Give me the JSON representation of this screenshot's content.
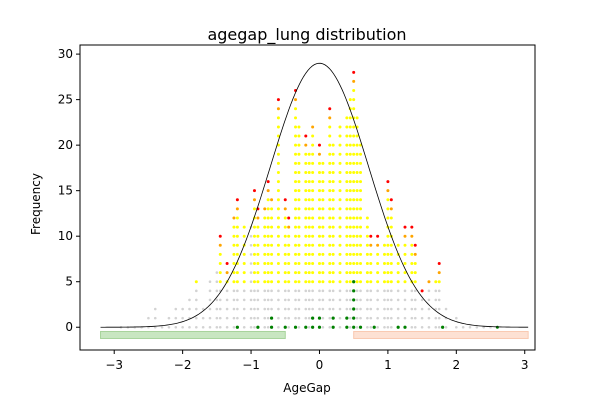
{
  "chart_data": {
    "type": "scatter",
    "title": "agegap_lung distribution",
    "xlabel": "AgeGap",
    "ylabel": "Frequency",
    "xlim": [
      -3.5,
      3.15
    ],
    "ylim": [
      -2.5,
      31
    ],
    "x_ticks": [
      -3,
      -2,
      -1,
      0,
      1,
      2,
      3
    ],
    "x_tick_labels": [
      "−3",
      "−2",
      "−1",
      "0",
      "1",
      "2",
      "3"
    ],
    "y_ticks": [
      0,
      5,
      10,
      15,
      20,
      25,
      30
    ],
    "y_tick_labels": [
      "0",
      "5",
      "10",
      "15",
      "20",
      "25",
      "30"
    ],
    "grid": false,
    "legend": "none",
    "colors": {
      "gray": "#d3d3d3",
      "yellow": "#ffff00",
      "orange": "#ffa500",
      "red": "#ff0000",
      "green": "#008000",
      "curve": "#000000",
      "band_left": "#c8e6c1",
      "band_left_edge": "#a7d39b",
      "band_right": "#fde1d3",
      "band_right_edge": "#f9c9b1"
    },
    "bands": [
      {
        "x0": -3.2,
        "x1": -0.5,
        "y": -0.85,
        "color": "band_left"
      },
      {
        "x0": 0.5,
        "x1": 3.05,
        "y": -0.85,
        "color": "band_right"
      }
    ],
    "curve": {
      "type": "gaussian",
      "peak": 29,
      "center": 0.0,
      "sigma": 0.72,
      "x_from": -3.2,
      "x_to": 3.05
    },
    "columns": [
      {
        "x": -2.9,
        "top": 0,
        "pattern": "gray"
      },
      {
        "x": -2.8,
        "top": 0,
        "pattern": "gray"
      },
      {
        "x": -2.7,
        "top": 0,
        "pattern": "gray"
      },
      {
        "x": -2.6,
        "top": 0,
        "pattern": "gray"
      },
      {
        "x": -2.5,
        "top": 1,
        "pattern": "gray"
      },
      {
        "x": -2.4,
        "top": 2,
        "pattern": "gray"
      },
      {
        "x": -2.3,
        "top": 0,
        "pattern": "gray"
      },
      {
        "x": -2.2,
        "top": 1,
        "pattern": "gray"
      },
      {
        "x": -2.1,
        "top": 2,
        "pattern": "gray"
      },
      {
        "x": -2.0,
        "top": 2,
        "pattern": "gray"
      },
      {
        "x": -1.9,
        "top": 3,
        "pattern": "gray"
      },
      {
        "x": -1.8,
        "top": 5,
        "pattern": "yellow"
      },
      {
        "x": -1.7,
        "top": 2,
        "pattern": "yellow"
      },
      {
        "x": -1.6,
        "top": 5,
        "pattern": "gray"
      },
      {
        "x": -1.5,
        "top": 6,
        "pattern": "gray"
      },
      {
        "x": -1.45,
        "top": 10,
        "pattern": "red"
      },
      {
        "x": -1.35,
        "top": 7,
        "pattern": "red"
      },
      {
        "x": -1.25,
        "top": 12,
        "pattern": "orange"
      },
      {
        "x": -1.2,
        "top": 14,
        "pattern": "red"
      },
      {
        "x": -1.1,
        "top": 11,
        "pattern": "yellow"
      },
      {
        "x": -1.0,
        "top": 11,
        "pattern": "gray"
      },
      {
        "x": -0.95,
        "top": 15,
        "pattern": "red"
      },
      {
        "x": -0.9,
        "top": 13,
        "pattern": "red"
      },
      {
        "x": -0.8,
        "top": 13,
        "pattern": "orange"
      },
      {
        "x": -0.75,
        "top": 16,
        "pattern": "red"
      },
      {
        "x": -0.7,
        "top": 14,
        "pattern": "orange"
      },
      {
        "x": -0.6,
        "top": 25,
        "pattern": "red"
      },
      {
        "x": -0.5,
        "top": 14,
        "pattern": "red"
      },
      {
        "x": -0.45,
        "top": 12,
        "pattern": "red"
      },
      {
        "x": -0.35,
        "top": 26,
        "pattern": "red"
      },
      {
        "x": -0.3,
        "top": 22,
        "pattern": "yellow"
      },
      {
        "x": -0.2,
        "top": 21,
        "pattern": "red"
      },
      {
        "x": -0.15,
        "top": 19,
        "pattern": "yellow"
      },
      {
        "x": -0.1,
        "top": 22,
        "pattern": "orange"
      },
      {
        "x": 0.0,
        "top": 20,
        "pattern": "red"
      },
      {
        "x": 0.05,
        "top": 18,
        "pattern": "yellow"
      },
      {
        "x": 0.15,
        "top": 24,
        "pattern": "red"
      },
      {
        "x": 0.2,
        "top": 20,
        "pattern": "yellow"
      },
      {
        "x": 0.3,
        "top": 22,
        "pattern": "yellow"
      },
      {
        "x": 0.4,
        "top": 23,
        "pattern": "yellow"
      },
      {
        "x": 0.45,
        "top": 25,
        "pattern": "yellow"
      },
      {
        "x": 0.5,
        "top": 28,
        "pattern": "red"
      },
      {
        "x": 0.55,
        "top": 23,
        "pattern": "yellow"
      },
      {
        "x": 0.6,
        "top": 20,
        "pattern": "yellow"
      },
      {
        "x": 0.7,
        "top": 12,
        "pattern": "yellow"
      },
      {
        "x": 0.75,
        "top": 10,
        "pattern": "red"
      },
      {
        "x": 0.85,
        "top": 10,
        "pattern": "red"
      },
      {
        "x": 0.95,
        "top": 9,
        "pattern": "yellow"
      },
      {
        "x": 1.0,
        "top": 16,
        "pattern": "red"
      },
      {
        "x": 1.05,
        "top": 14,
        "pattern": "red"
      },
      {
        "x": 1.15,
        "top": 9,
        "pattern": "yellow"
      },
      {
        "x": 1.25,
        "top": 11,
        "pattern": "red"
      },
      {
        "x": 1.35,
        "top": 11,
        "pattern": "red"
      },
      {
        "x": 1.4,
        "top": 9,
        "pattern": "red"
      },
      {
        "x": 1.5,
        "top": 4,
        "pattern": "red"
      },
      {
        "x": 1.6,
        "top": 5,
        "pattern": "orange"
      },
      {
        "x": 1.7,
        "top": 5,
        "pattern": "yellow"
      },
      {
        "x": 1.75,
        "top": 7,
        "pattern": "red"
      },
      {
        "x": 1.85,
        "top": 2,
        "pattern": "yellow"
      },
      {
        "x": 2.0,
        "top": 1,
        "pattern": "yellow"
      },
      {
        "x": 2.1,
        "top": 0,
        "pattern": "gray"
      },
      {
        "x": 2.2,
        "top": 0,
        "pattern": "gray"
      },
      {
        "x": 2.3,
        "top": 0,
        "pattern": "gray"
      },
      {
        "x": 2.4,
        "top": 0,
        "pattern": "yellow"
      },
      {
        "x": 2.5,
        "top": 0,
        "pattern": "yellow"
      },
      {
        "x": 2.6,
        "top": 0,
        "pattern": "green"
      }
    ],
    "green_points": [
      {
        "x": -1.2,
        "y": 0
      },
      {
        "x": -0.9,
        "y": 0
      },
      {
        "x": -0.7,
        "y": 0
      },
      {
        "x": -0.7,
        "y": 1
      },
      {
        "x": -0.5,
        "y": 0
      },
      {
        "x": -0.35,
        "y": 0
      },
      {
        "x": -0.2,
        "y": 0
      },
      {
        "x": -0.1,
        "y": 0
      },
      {
        "x": -0.1,
        "y": 1
      },
      {
        "x": 0.0,
        "y": 0
      },
      {
        "x": 0.0,
        "y": 1
      },
      {
        "x": 0.2,
        "y": 0
      },
      {
        "x": 0.2,
        "y": 1
      },
      {
        "x": 0.4,
        "y": 0
      },
      {
        "x": 0.4,
        "y": 1
      },
      {
        "x": 0.5,
        "y": 0
      },
      {
        "x": 0.5,
        "y": 1
      },
      {
        "x": 0.5,
        "y": 2
      },
      {
        "x": 0.5,
        "y": 3
      },
      {
        "x": 0.5,
        "y": 4
      },
      {
        "x": 0.5,
        "y": 5
      },
      {
        "x": 0.6,
        "y": 0
      },
      {
        "x": 0.8,
        "y": 0
      },
      {
        "x": 1.15,
        "y": 0
      },
      {
        "x": 1.25,
        "y": 0
      },
      {
        "x": 1.8,
        "y": 0
      }
    ]
  }
}
